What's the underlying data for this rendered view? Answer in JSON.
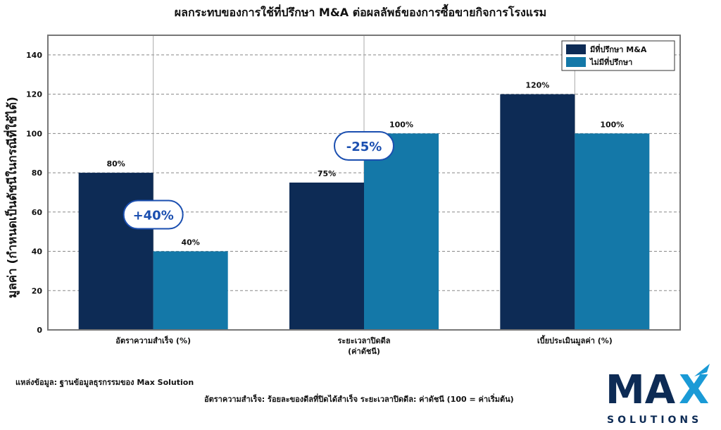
{
  "chart_data": {
    "type": "bar",
    "title": "ผลกระทบของการใช้ที่ปรึกษา M&A ต่อผลลัพธ์ของการซื้อขายกิจการโรงแรม",
    "ylabel": "มูลค่า (กำหนดเป็นดัชนีในกรณีที่ใช้ได้)",
    "xlabel": "",
    "categories": [
      [
        "อัตราความสำเร็จ (%)"
      ],
      [
        "ระยะเวลาปิดดีล",
        "(ค่าดัชนี)"
      ],
      [
        "เบี้ยประเมินมูลค่า (%)"
      ]
    ],
    "series": [
      {
        "name": "มีที่ปรึกษา M&A",
        "values": [
          80,
          75,
          120
        ],
        "labels": [
          "80%",
          "75%",
          "120%"
        ],
        "color": "#0d2b55"
      },
      {
        "name": "ไม่มีที่ปรึกษา",
        "values": [
          40,
          100,
          100
        ],
        "labels": [
          "40%",
          "100%",
          "100%"
        ],
        "color": "#1478a8"
      }
    ],
    "annotations": [
      {
        "text": "+40%",
        "category": 0
      },
      {
        "text": "-25%",
        "category": 1
      }
    ],
    "ylim": [
      0,
      150
    ],
    "yticks": [
      0,
      20,
      40,
      60,
      80,
      100,
      120,
      140
    ],
    "grid": true,
    "legend": "top-right"
  },
  "footer": {
    "source": "แหล่งข้อมูล: ฐานข้อมูลธุรกรรมของ Max Solution",
    "note": "อัตราความสำเร็จ: ร้อยละของดีลที่ปิดได้สำเร็จ ระยะเวลาปิดดีล: ค่าดัชนี (100 = ค่าเริ่มต้น)"
  },
  "logo": {
    "text": "MAX",
    "subtext": "SOLUTIONS",
    "colors": {
      "primary": "#0d2b55",
      "accent": "#1a9ad6"
    }
  }
}
